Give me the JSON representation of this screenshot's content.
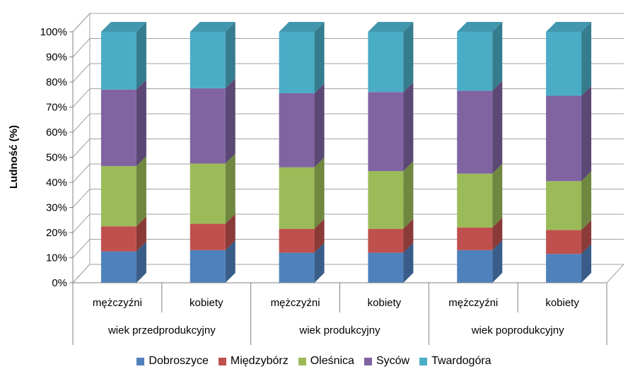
{
  "chart_data": {
    "type": "bar",
    "stacked": true,
    "percent": true,
    "three_d": true,
    "ylabel": "Ludność (%)",
    "y_ticks": [
      "0%",
      "10%",
      "20%",
      "30%",
      "40%",
      "50%",
      "60%",
      "70%",
      "80%",
      "90%",
      "100%"
    ],
    "ylim": [
      0,
      100
    ],
    "categories": [
      "mężczyźni",
      "kobiety",
      "mężczyźni",
      "kobiety",
      "mężczyźni",
      "kobiety"
    ],
    "groups": [
      {
        "label": "wiek przedprodukcyjny",
        "span": 2
      },
      {
        "label": "wiek produkcyjny",
        "span": 2
      },
      {
        "label": "wiek poprodukcyjny",
        "span": 2
      }
    ],
    "series": [
      {
        "name": "Dobroszyce",
        "color": "#4F81BD",
        "values": [
          12.5,
          13.0,
          12.0,
          12.0,
          13.0,
          11.5
        ]
      },
      {
        "name": "Międzybórz",
        "color": "#C0504D",
        "values": [
          10.0,
          10.5,
          9.5,
          9.5,
          9.0,
          9.5
        ]
      },
      {
        "name": "Oleśnica",
        "color": "#9BBB59",
        "values": [
          24.0,
          24.0,
          24.5,
          23.0,
          21.5,
          19.5
        ]
      },
      {
        "name": "Syców",
        "color": "#8064A2",
        "values": [
          30.5,
          30.0,
          29.5,
          31.5,
          33.0,
          34.0
        ]
      },
      {
        "name": "Twardogóra",
        "color": "#4BACC6",
        "values": [
          23.0,
          22.5,
          24.5,
          24.0,
          23.5,
          25.5
        ]
      }
    ],
    "legend_position": "bottom",
    "grid": true
  }
}
